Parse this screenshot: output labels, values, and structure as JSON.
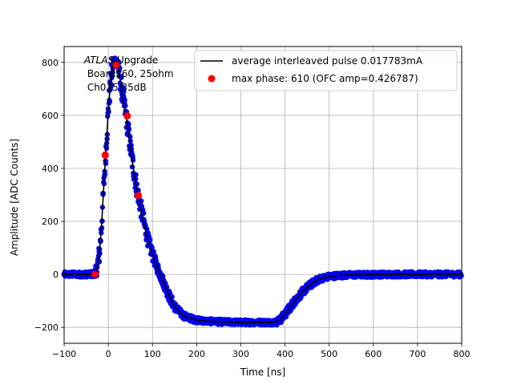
{
  "chart_data": {
    "type": "scatter",
    "xlabel": "Time [ns]",
    "ylabel": "Amplitude [ADC Counts]",
    "xlim": [
      -100,
      800
    ],
    "ylim": [
      -260,
      860
    ],
    "xticks": [
      -100,
      0,
      100,
      200,
      300,
      400,
      500,
      600,
      700,
      800
    ],
    "yticks": [
      -200,
      0,
      200,
      400,
      600,
      800
    ],
    "grid": true,
    "legend_position": "upper-right",
    "annotation": {
      "title_italic": "ATLAS",
      "title_rest": " Upgrade",
      "line2": " Board260, 25ohm",
      "line3": " Ch015 35dB"
    },
    "series": [
      {
        "name": "average interleaved pulse 0.017783mA",
        "kind": "line",
        "color": "#000000",
        "x": [
          -100,
          -40,
          -30,
          -25,
          -20,
          -15,
          -10,
          -5,
          0,
          5,
          10,
          15,
          20,
          25,
          30,
          35,
          40,
          45,
          50,
          55,
          60,
          65,
          70,
          75,
          80,
          90,
          100,
          110,
          120,
          130,
          140,
          150,
          160,
          170,
          180,
          200,
          220,
          250,
          300,
          350,
          370,
          380,
          390,
          400,
          410,
          420,
          430,
          440,
          450,
          460,
          470,
          480,
          500,
          520,
          550,
          600,
          650,
          700,
          800
        ],
        "y": [
          0,
          0,
          5,
          25,
          80,
          190,
          340,
          480,
          620,
          720,
          790,
          810,
          800,
          760,
          700,
          650,
          600,
          540,
          480,
          420,
          370,
          320,
          280,
          240,
          200,
          130,
          75,
          30,
          -10,
          -50,
          -90,
          -120,
          -140,
          -155,
          -163,
          -172,
          -176,
          -179,
          -181,
          -181,
          -181,
          -180,
          -170,
          -150,
          -128,
          -105,
          -85,
          -66,
          -50,
          -36,
          -25,
          -16,
          -8,
          -4,
          -2,
          -1,
          0,
          0,
          0
        ]
      },
      {
        "name": "max phase: 610 (OFC amp=0.426787)",
        "kind": "markers",
        "color": "#ff0000",
        "x": [
          -30,
          -7,
          18,
          43,
          68
        ],
        "y": [
          0,
          450,
          790,
          598,
          298
        ]
      }
    ]
  }
}
